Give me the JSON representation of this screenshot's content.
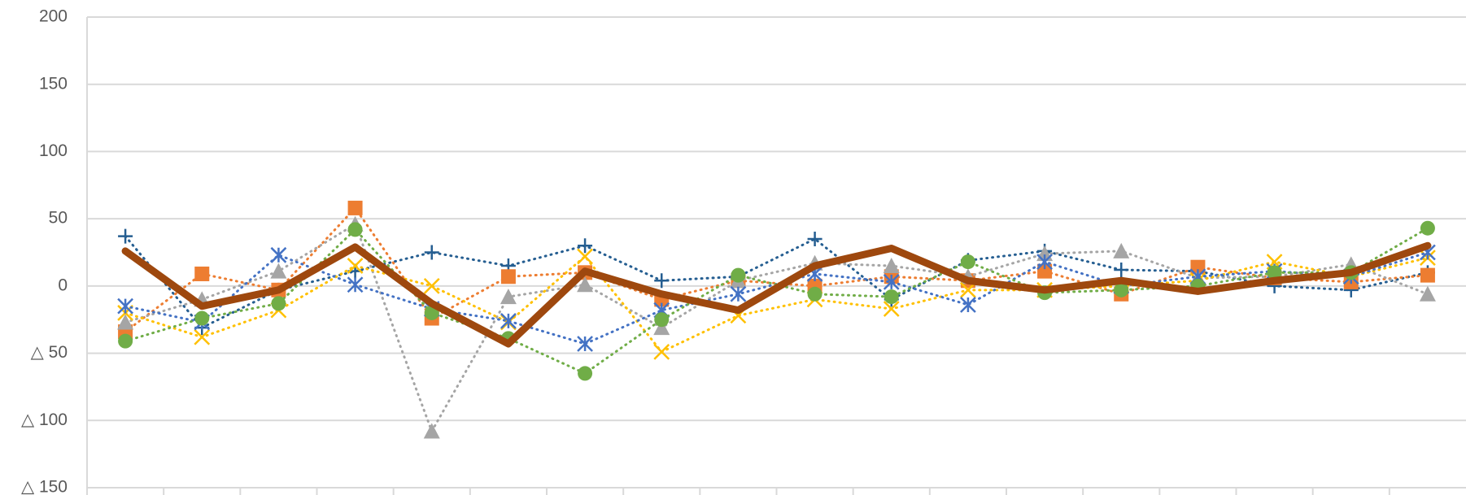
{
  "chart_data": {
    "type": "line",
    "categories": [
      null,
      null,
      null,
      null,
      null,
      null,
      null,
      null,
      null,
      null,
      null,
      null,
      null,
      null,
      null,
      null,
      null,
      null
    ],
    "ylim": [
      -150,
      200
    ],
    "yticks": [
      {
        "value": -150,
        "label": "△ 150"
      },
      {
        "value": -100,
        "label": "△ 100"
      },
      {
        "value": -50,
        "label": "△ 50"
      },
      0,
      50,
      100,
      150,
      200
    ],
    "grid": true,
    "series": [
      {
        "color": "#255e91",
        "marker": "plus",
        "dotted": true,
        "width": 3,
        "values": [
          37,
          -31,
          -3,
          11,
          25,
          15,
          30,
          4,
          7,
          35,
          -10,
          19,
          26,
          12,
          11,
          0,
          -3,
          10
        ]
      },
      {
        "color": "#ed7d31",
        "marker": "square",
        "dotted": true,
        "width": 3,
        "values": [
          -34,
          9,
          -3,
          58,
          -24,
          7,
          10,
          -10,
          4,
          0,
          7,
          4,
          11,
          -6,
          14,
          6,
          3,
          8
        ]
      },
      {
        "color": "#a5a5a5",
        "marker": "triangle",
        "dotted": true,
        "width": 3,
        "values": [
          -27,
          -10,
          11,
          46,
          -108,
          -8,
          1,
          -31,
          4,
          17,
          15,
          7,
          24,
          26,
          6,
          7,
          16,
          -6
        ]
      },
      {
        "color": "#ffc000",
        "marker": "x",
        "dotted": true,
        "width": 3,
        "values": [
          -20,
          -38,
          -18,
          15,
          0,
          -27,
          22,
          -49,
          -22,
          -10,
          -17,
          -3,
          -3,
          0,
          4,
          18,
          7,
          21
        ]
      },
      {
        "color": "#4472c4",
        "marker": "star",
        "dotted": true,
        "width": 3,
        "values": [
          -15,
          -27,
          23,
          1,
          -17,
          -26,
          -43,
          -18,
          -6,
          9,
          3,
          -14,
          18,
          0,
          7,
          11,
          7,
          25
        ]
      },
      {
        "color": "#70ad47",
        "marker": "circle",
        "dotted": true,
        "width": 3,
        "values": [
          -41,
          -24,
          -13,
          42,
          -20,
          -39,
          -65,
          -25,
          8,
          -6,
          -8,
          18,
          -5,
          -3,
          0,
          10,
          10,
          43
        ]
      },
      {
        "color": "#9e480e",
        "marker": "none",
        "dotted": false,
        "width": 9,
        "values": [
          26,
          -15,
          -3,
          29,
          -13,
          -43,
          11,
          -6,
          -18,
          15,
          28,
          4,
          -3,
          4,
          -4,
          4,
          10,
          30
        ]
      }
    ]
  }
}
